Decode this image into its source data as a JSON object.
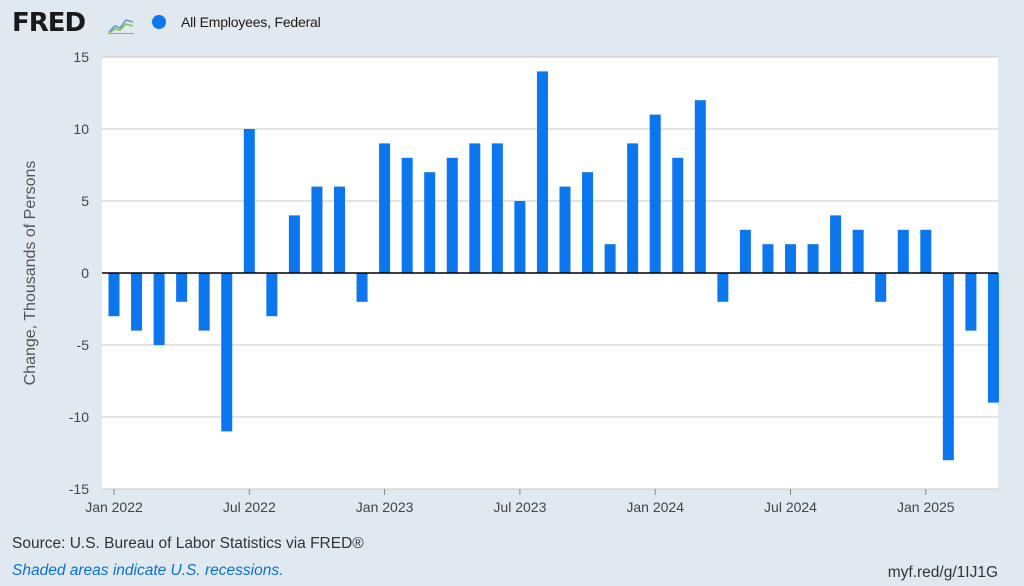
{
  "header": {
    "logo_text": "FRED",
    "logo_icon": "fred-line-chart-icon",
    "legend_label": "All Employees, Federal"
  },
  "footer": {
    "source": "Source: U.S. Bureau of Labor Statistics via FRED®",
    "note": "Shaded areas indicate U.S. recessions.",
    "shortlink": "myf.red/g/1IJ1G"
  },
  "colors": {
    "bar": "#0b76ee",
    "plot_background": "#ffffff",
    "page_background": "#e1e9f0",
    "grid": "#c8c8c8",
    "zero_line": "#000000"
  },
  "chart_data": {
    "type": "bar",
    "title": "",
    "xlabel": "",
    "ylabel": "Change, Thousands of Persons",
    "ylim": [
      -15,
      15
    ],
    "yticks": [
      15,
      10,
      5,
      0,
      -5,
      -10,
      -15
    ],
    "grid": true,
    "legend_position": "top-left",
    "x_tick_labels": [
      "Jan 2022",
      "Jul 2022",
      "Jan 2023",
      "Jul 2023",
      "Jan 2024",
      "Jul 2024",
      "Jan 2025"
    ],
    "series": [
      {
        "name": "All Employees, Federal",
        "categories": [
          "2022-01",
          "2022-02",
          "2022-03",
          "2022-04",
          "2022-05",
          "2022-06",
          "2022-07",
          "2022-08",
          "2022-09",
          "2022-10",
          "2022-11",
          "2022-12",
          "2023-01",
          "2023-02",
          "2023-03",
          "2023-04",
          "2023-05",
          "2023-06",
          "2023-07",
          "2023-08",
          "2023-09",
          "2023-10",
          "2023-11",
          "2023-12",
          "2024-01",
          "2024-02",
          "2024-03",
          "2024-04",
          "2024-05",
          "2024-06",
          "2024-07",
          "2024-08",
          "2024-09",
          "2024-10",
          "2024-11",
          "2024-12",
          "2025-01",
          "2025-02",
          "2025-03",
          "2025-04"
        ],
        "values": [
          -3,
          -4,
          -5,
          -2,
          -4,
          -11,
          10,
          -3,
          4,
          6,
          6,
          -2,
          9,
          8,
          7,
          8,
          9,
          9,
          5,
          14,
          6,
          7,
          2,
          9,
          11,
          8,
          12,
          -2,
          3,
          2,
          2,
          2,
          4,
          3,
          -2,
          3,
          3,
          -13,
          -4,
          -9
        ]
      }
    ]
  }
}
